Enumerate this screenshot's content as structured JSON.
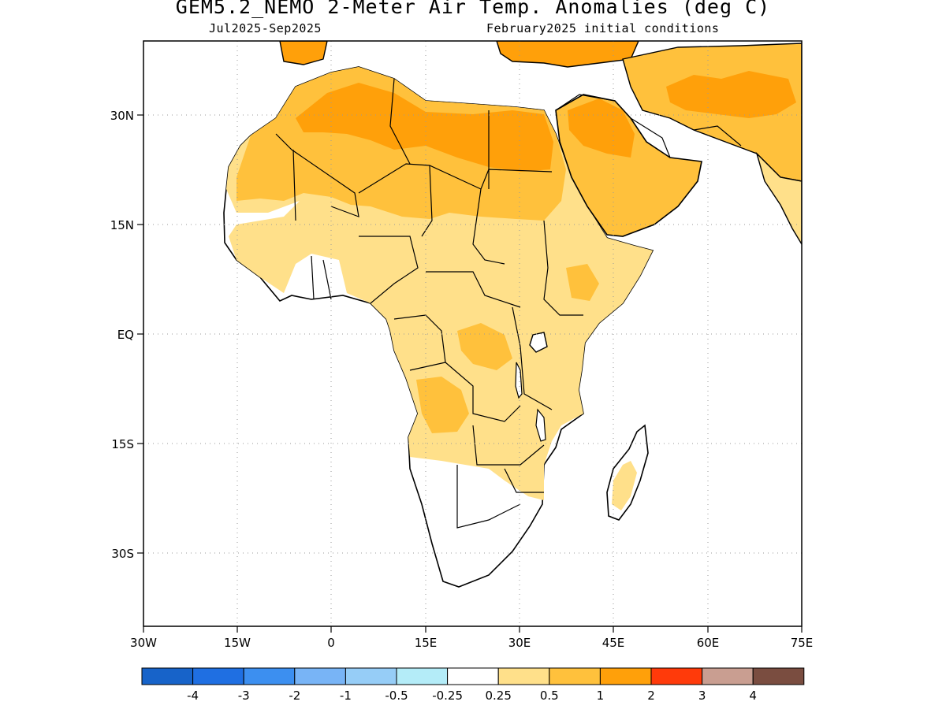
{
  "title": "GEM5.2_NEMO 2-Meter Air Temp. Anomalies (deg C)",
  "subtitle_left": "Jul2025-Sep2025",
  "subtitle_right": "February2025 initial conditions",
  "latitude_labels": [
    "30N",
    "15N",
    "EQ",
    "15S",
    "30S"
  ],
  "longitude_labels": [
    "30W",
    "15W",
    "0",
    "15E",
    "30E",
    "45E",
    "60E",
    "75E"
  ],
  "colorbar": {
    "colors": [
      "#1763c9",
      "#1f6fe2",
      "#3c8ff0",
      "#78b4f6",
      "#96cdf7",
      "#b4ecf8",
      "#ffffff",
      "#ffe08a",
      "#ffc13c",
      "#ffa00a",
      "#ff3a0a",
      "#c99e91",
      "#7a4d40"
    ],
    "labels": [
      "-4",
      "-3",
      "-2",
      "-1",
      "-0.5",
      "-0.25",
      "0.25",
      "0.5",
      "1",
      "2",
      "3",
      "4"
    ]
  },
  "anomaly_colors": {
    "light": "#ffe08a",
    "medium": "#ffc13c",
    "strong": "#ffa00a",
    "coast": "#000000"
  }
}
